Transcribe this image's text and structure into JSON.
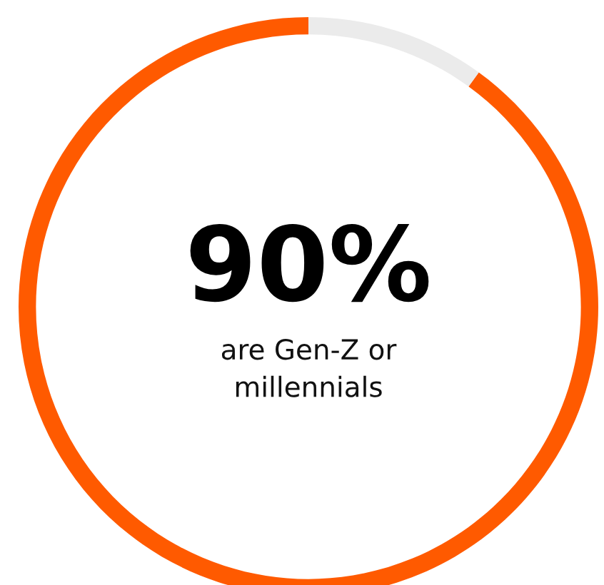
{
  "chart_data": {
    "type": "donut",
    "categories": [
      null,
      null
    ],
    "values": [
      90,
      10
    ],
    "colors": [
      "#ff5a00",
      "#ebebeb"
    ],
    "value_labels": [
      "90%",
      null
    ],
    "annotations": [
      "are Gen-Z or\nmillennials"
    ],
    "legend": false
  }
}
